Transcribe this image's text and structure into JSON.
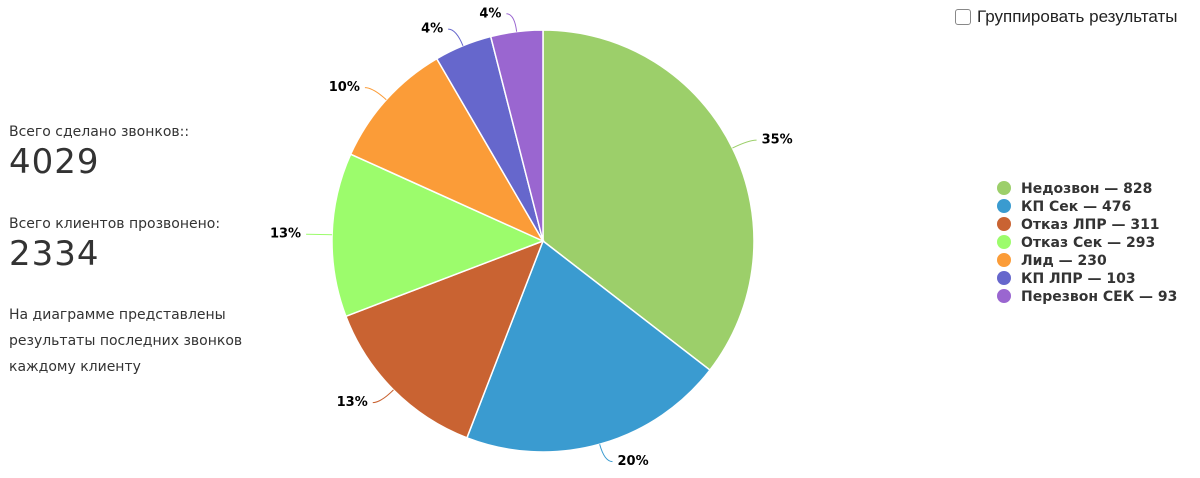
{
  "summary": {
    "calls_label": "Всего сделано звонков::",
    "calls": 4029,
    "clients_label": "Всего клиентов прозвонено:",
    "clients": 2334,
    "note_lines": [
      "На диаграмме представлены",
      "результаты последних звонков",
      "каждому клиенту"
    ]
  },
  "checkbox": {
    "label": "Группировать результаты"
  },
  "chart_data": {
    "type": "pie",
    "categories": [
      "Недозвон — 828",
      "КП Сек — 476",
      "Отказ ЛПР — 311",
      "Отказ Сек — 293",
      "Лид — 230",
      "КП ЛПР — 103",
      "Перезвон СЕК — 93"
    ],
    "values": [
      828,
      476,
      311,
      293,
      230,
      103,
      93
    ],
    "value_labels": [
      "35%",
      "20%",
      "13%",
      "13%",
      "10%",
      "4%",
      "4%"
    ],
    "colors": [
      "#9ccf6a",
      "#3a9bd0",
      "#c96332",
      "#9cfc6c",
      "#fb9c38",
      "#6667cc",
      "#9a66d0"
    ],
    "legend": "right"
  }
}
